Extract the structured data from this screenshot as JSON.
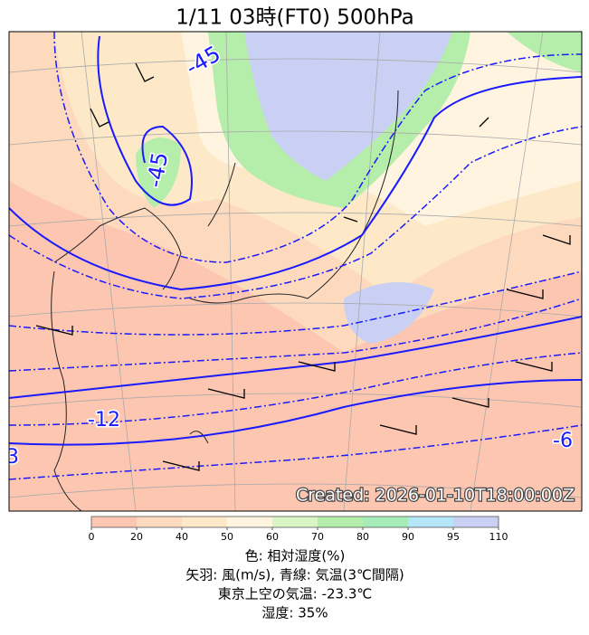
{
  "title": "1/11  03時(FT0)     500hPa",
  "map": {
    "contour_labels": [
      "-45",
      "-45",
      "-12",
      "-6",
      "3"
    ],
    "created": "Created: 2026-01-10T18:00:00Z"
  },
  "colorbar": {
    "ticks": [
      0,
      20,
      40,
      50,
      60,
      70,
      80,
      90,
      95,
      110
    ],
    "colors": [
      "#fdc6b0",
      "#fdd9bd",
      "#fde8c8",
      "#fef4e0",
      "#d9f5c4",
      "#b5eeaa",
      "#a6ecb8",
      "#b4e6f8",
      "#c9d0f3"
    ]
  },
  "legend": {
    "line1": "色: 相対湿度(%)",
    "line2": "矢羽: 風(m/s),  青線: 気温(3℃間隔)",
    "line3": "東京上空の気温: -23.3℃",
    "line4": "湿度: 35%"
  }
}
